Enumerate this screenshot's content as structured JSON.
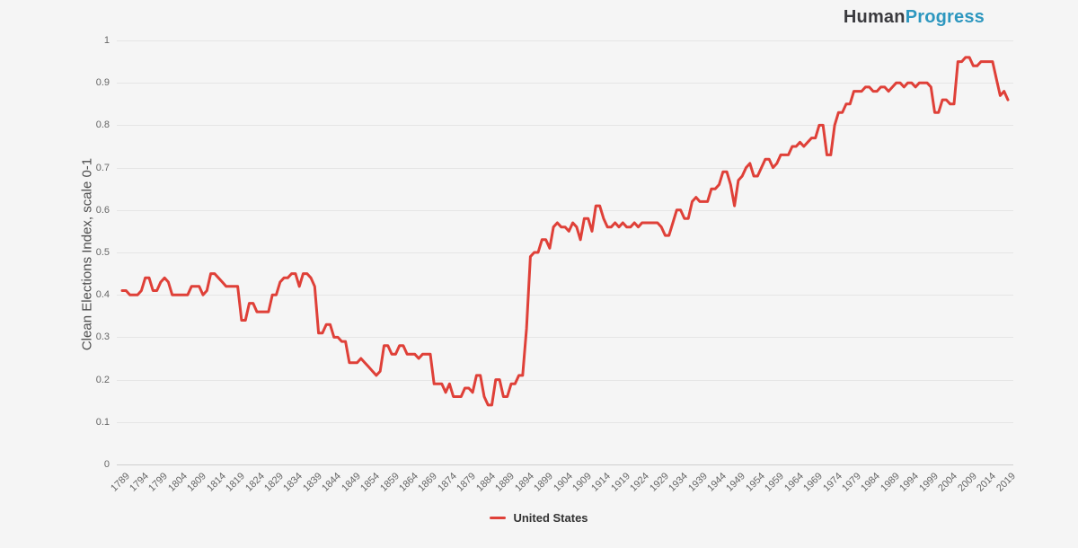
{
  "page": {
    "background": "#f5f5f5"
  },
  "logo": {
    "part1": "Human",
    "part2": "Progress",
    "part1_color": "#3a3a3e",
    "part2_color": "#2d97bf"
  },
  "legend": {
    "items": [
      {
        "label": "United States",
        "color": "#df4038"
      }
    ]
  },
  "chart_data": {
    "type": "line",
    "title": "",
    "xlabel": "",
    "ylabel": "Clean Elections Index, scale 0-1",
    "ylim": [
      0,
      1
    ],
    "xlim": [
      1789,
      2019
    ],
    "grid": "horizontal",
    "legend_position": "bottom-center",
    "y_tick_labels": [
      "0",
      "0.1",
      "0.2",
      "0.3",
      "0.4",
      "0.5",
      "0.6",
      "0.7",
      "0.8",
      "0.9",
      "1"
    ],
    "x_tick_labels": [
      "1789",
      "1794",
      "1799",
      "1804",
      "1809",
      "1814",
      "1819",
      "1824",
      "1829",
      "1834",
      "1839",
      "1844",
      "1849",
      "1854",
      "1859",
      "1864",
      "1869",
      "1874",
      "1879",
      "1884",
      "1889",
      "1894",
      "1899",
      "1904",
      "1909",
      "1914",
      "1919",
      "1924",
      "1929",
      "1934",
      "1939",
      "1944",
      "1949",
      "1954",
      "1959",
      "1964",
      "1969",
      "1974",
      "1979",
      "1984",
      "1989",
      "1994",
      "1999",
      "2004",
      "2009",
      "2014",
      "2019"
    ],
    "x_tick_step_years": 5,
    "series": [
      {
        "name": "United States",
        "color": "#df4038",
        "start_year": 1789,
        "end_year": 2019,
        "values": [
          0.41,
          0.41,
          0.4,
          0.4,
          0.4,
          0.41,
          0.44,
          0.44,
          0.41,
          0.41,
          0.43,
          0.44,
          0.43,
          0.4,
          0.4,
          0.4,
          0.4,
          0.4,
          0.42,
          0.42,
          0.42,
          0.4,
          0.41,
          0.45,
          0.45,
          0.44,
          0.43,
          0.42,
          0.42,
          0.42,
          0.42,
          0.34,
          0.34,
          0.38,
          0.38,
          0.36,
          0.36,
          0.36,
          0.36,
          0.4,
          0.4,
          0.43,
          0.44,
          0.44,
          0.45,
          0.45,
          0.42,
          0.45,
          0.45,
          0.44,
          0.42,
          0.31,
          0.31,
          0.33,
          0.33,
          0.3,
          0.3,
          0.29,
          0.29,
          0.24,
          0.24,
          0.24,
          0.25,
          0.24,
          0.23,
          0.22,
          0.21,
          0.22,
          0.28,
          0.28,
          0.26,
          0.26,
          0.28,
          0.28,
          0.26,
          0.26,
          0.26,
          0.25,
          0.26,
          0.26,
          0.26,
          0.19,
          0.19,
          0.19,
          0.17,
          0.19,
          0.16,
          0.16,
          0.16,
          0.18,
          0.18,
          0.17,
          0.21,
          0.21,
          0.16,
          0.14,
          0.14,
          0.2,
          0.2,
          0.16,
          0.16,
          0.19,
          0.19,
          0.21,
          0.21,
          0.32,
          0.49,
          0.5,
          0.5,
          0.53,
          0.53,
          0.51,
          0.56,
          0.57,
          0.56,
          0.56,
          0.55,
          0.57,
          0.56,
          0.53,
          0.58,
          0.58,
          0.55,
          0.61,
          0.61,
          0.58,
          0.56,
          0.56,
          0.57,
          0.56,
          0.57,
          0.56,
          0.56,
          0.57,
          0.56,
          0.57,
          0.57,
          0.57,
          0.57,
          0.57,
          0.56,
          0.54,
          0.54,
          0.57,
          0.6,
          0.6,
          0.58,
          0.58,
          0.62,
          0.63,
          0.62,
          0.62,
          0.62,
          0.65,
          0.65,
          0.66,
          0.69,
          0.69,
          0.66,
          0.61,
          0.67,
          0.68,
          0.7,
          0.71,
          0.68,
          0.68,
          0.7,
          0.72,
          0.72,
          0.7,
          0.71,
          0.73,
          0.73,
          0.73,
          0.75,
          0.75,
          0.76,
          0.75,
          0.76,
          0.77,
          0.77,
          0.8,
          0.8,
          0.73,
          0.73,
          0.8,
          0.83,
          0.83,
          0.85,
          0.85,
          0.88,
          0.88,
          0.88,
          0.89,
          0.89,
          0.88,
          0.88,
          0.89,
          0.89,
          0.88,
          0.89,
          0.9,
          0.9,
          0.89,
          0.9,
          0.9,
          0.89,
          0.9,
          0.9,
          0.9,
          0.89,
          0.83,
          0.83,
          0.86,
          0.86,
          0.85,
          0.85,
          0.95,
          0.95,
          0.96,
          0.96,
          0.94,
          0.94,
          0.95,
          0.95,
          0.95,
          0.95,
          0.91,
          0.87,
          0.88,
          0.86
        ]
      }
    ]
  }
}
